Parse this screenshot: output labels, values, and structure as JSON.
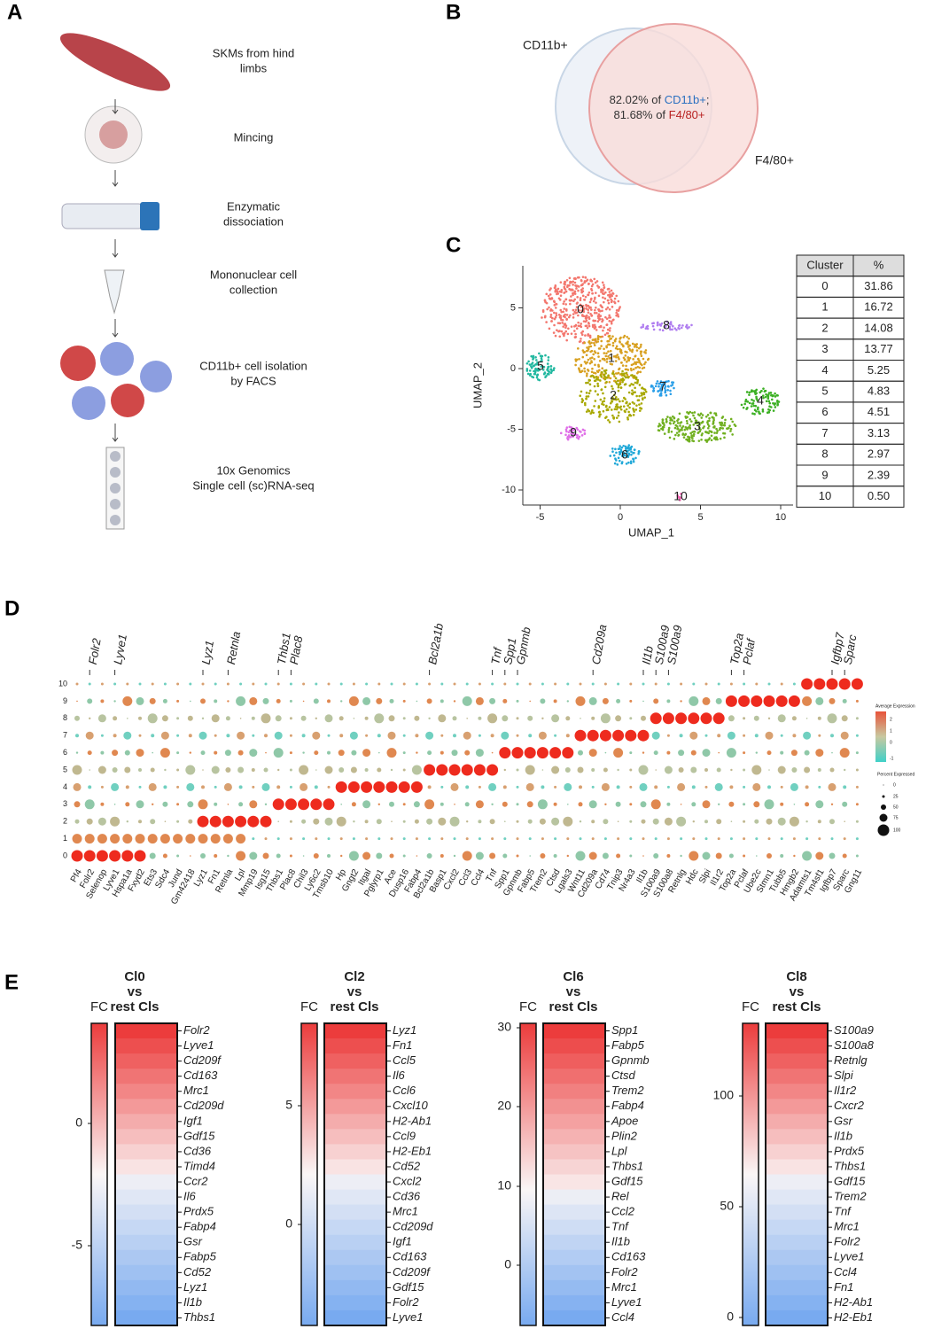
{
  "panel_a": {
    "label": "A",
    "steps": [
      [
        "SKMs from hind",
        "limbs"
      ],
      [
        "Mincing"
      ],
      [
        "Enzymatic",
        "dissociation"
      ],
      [
        "Mononuclear cell",
        "collection"
      ],
      [
        "CD11b+ cell isolation",
        "by FACS"
      ],
      [
        "10x Genomics",
        "Single cell (sc)RNA-seq"
      ]
    ]
  },
  "panel_b": {
    "label": "B",
    "set_1": "CD11b+",
    "set_2": "F4/80+",
    "overlap": [
      [
        "82.02% of ",
        "CD11b+",
        ";"
      ],
      [
        "81.68% of ",
        "F4/80+"
      ]
    ]
  },
  "panel_c": {
    "label": "C",
    "x_label": "UMAP_1",
    "y_label": "UMAP_2",
    "xticks": [
      "-5",
      "0",
      "5",
      "10"
    ],
    "yticks": [
      "-10",
      "-5",
      "0",
      "5"
    ],
    "cluster_labels": [
      "0",
      "1",
      "2",
      "3",
      "4",
      "5",
      "6",
      "7",
      "8",
      "9",
      "10"
    ],
    "table": {
      "header": [
        "Cluster",
        "%"
      ],
      "rows": [
        [
          "0",
          "31.86"
        ],
        [
          "1",
          "16.72"
        ],
        [
          "2",
          "14.08"
        ],
        [
          "3",
          "13.77"
        ],
        [
          "4",
          "5.25"
        ],
        [
          "5",
          "4.83"
        ],
        [
          "6",
          "4.51"
        ],
        [
          "7",
          "3.13"
        ],
        [
          "8",
          "2.97"
        ],
        [
          "9",
          "2.39"
        ],
        [
          "10",
          "0.50"
        ]
      ]
    }
  },
  "panel_d": {
    "label": "D",
    "clusters": [
      "0",
      "1",
      "2",
      "3",
      "4",
      "5",
      "6",
      "7",
      "8",
      "9",
      "10"
    ],
    "genes": [
      "Pf4",
      "Folr2",
      "Selenop",
      "Lyve1",
      "Hspa1a",
      "Fxyd2",
      "Ets3",
      "Sdc4",
      "Jund",
      "Gm42418",
      "Lyz1",
      "Fn1",
      "Retnla",
      "Lpl",
      "Mmp19",
      "Isg15",
      "Thbs1",
      "Plac8",
      "Chil3",
      "Ly6c2",
      "Tmsb10",
      "Hp",
      "Gngt2",
      "Itgal",
      "Pglyrp1",
      "Ace",
      "Dusp16",
      "Fabp4",
      "Bcl2a1b",
      "Basp1",
      "Cxcl2",
      "Ccl3",
      "Ccl4",
      "Tnf",
      "Spp1",
      "Gpnmb",
      "Fabp5",
      "Trem2",
      "Ctsd",
      "Lgals3",
      "Wnt11",
      "Cd209a",
      "Cd74",
      "Tnip3",
      "Nr4a3",
      "Il1b",
      "S100a9",
      "S100a8",
      "Retnlg",
      "Hdc",
      "Slpi",
      "Il1r2",
      "Top2a",
      "Pclaf",
      "Ube2c",
      "Stmn1",
      "Tubb5",
      "Hmgb2",
      "Adamts1",
      "Tm4sf1",
      "Igfbp7",
      "Sparc",
      "Gng11"
    ],
    "highlighted_genes": [
      "Folr2",
      "Lyve1",
      "Lyz1",
      "Retnla",
      "Thbs1",
      "Plac8",
      "Bcl2a1b",
      "Tnf",
      "Spp1",
      "Gpnmb",
      "Cd209a",
      "Il1b",
      "S100a9",
      "S100a9",
      "Top2a",
      "Pclaf",
      "Igfbp7",
      "Sparc"
    ],
    "legend": {
      "average_title": "Average Expression",
      "average_ticks": [
        "2",
        "1",
        "0",
        "-1"
      ],
      "percent_title": "Percent Expressed",
      "percent_ticks": [
        "0",
        "25",
        "50",
        "75",
        "100"
      ]
    }
  },
  "panel_e": {
    "label": "E",
    "heatmaps": [
      {
        "title": [
          "Cl0",
          "vs",
          "rest Cls"
        ],
        "scale_label": "FC",
        "ticks": [
          "0",
          "-5"
        ],
        "genes": [
          "Folr2",
          "Lyve1",
          "Cd209f",
          "Cd163",
          "Mrc1",
          "Cd209d",
          "Igf1",
          "Gdf15",
          "Cd36",
          "Timd4",
          "Ccr2",
          "Il6",
          "Prdx5",
          "Fabp4",
          "Gsr",
          "Fabp5",
          "Cd52",
          "Lyz1",
          "Il1b",
          "Thbs1"
        ]
      },
      {
        "title": [
          "Cl2",
          "vs",
          "rest Cls"
        ],
        "scale_label": "FC",
        "ticks": [
          "5",
          "0"
        ],
        "genes": [
          "Lyz1",
          "Fn1",
          "Ccl5",
          "Il6",
          "Ccl6",
          "Cxcl10",
          "H2-Ab1",
          "Ccl9",
          "H2-Eb1",
          "Cd52",
          "Cxcl2",
          "Cd36",
          "Mrc1",
          "Cd209d",
          "Igf1",
          "Cd163",
          "Cd209f",
          "Gdf15",
          "Folr2",
          "Lyve1"
        ]
      },
      {
        "title": [
          "Cl6",
          "vs",
          "rest Cls"
        ],
        "scale_label": "FC",
        "ticks": [
          "30",
          "20",
          "10",
          "0"
        ],
        "genes": [
          "Spp1",
          "Fabp5",
          "Gpnmb",
          "Ctsd",
          "Trem2",
          "Fabp4",
          "Apoe",
          "Plin2",
          "Lpl",
          "Thbs1",
          "Gdf15",
          "Rel",
          "Ccl2",
          "Tnf",
          "Il1b",
          "Cd163",
          "Folr2",
          "Mrc1",
          "Lyve1",
          "Ccl4"
        ]
      },
      {
        "title": [
          "Cl8",
          "vs",
          "rest Cls"
        ],
        "scale_label": "FC",
        "ticks": [
          "100",
          "50",
          "0"
        ],
        "genes": [
          "S100a9",
          "S100a8",
          "Retnlg",
          "Slpi",
          "Il1r2",
          "Cxcr2",
          "Gsr",
          "Il1b",
          "Prdx5",
          "Thbs1",
          "Gdf15",
          "Trem2",
          "Tnf",
          "Mrc1",
          "Folr2",
          "Lyve1",
          "Ccl4",
          "Fn1",
          "H2-Ab1",
          "H2-Eb1"
        ]
      }
    ]
  }
}
